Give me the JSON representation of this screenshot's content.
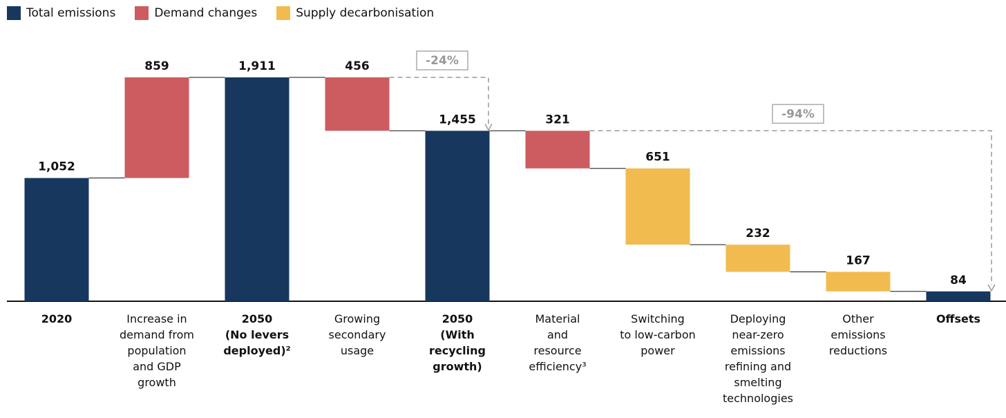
{
  "chart_data": {
    "type": "waterfall",
    "categories": [
      "2020",
      "Increase in\ndemand from\npopulation\nand GDP\ngrowth",
      "2050\n(No levers\ndeployed)²",
      "Growing\nsecondary\nusage",
      "2050\n(With\nrecycling\ngrowth)",
      "Material\nand\nresource\nefficiency³",
      "Switching\nto low-carbon\npower",
      "Deploying\nnear-zero\nemissions\nrefining and\nsmelting\ntechnologies",
      "Other\nemissions\nreductions",
      "Offsets"
    ],
    "series": [
      {
        "name": "Total emissions",
        "color": "#17375e",
        "values": [
          1052,
          null,
          1911,
          null,
          1455,
          null,
          null,
          null,
          null,
          84
        ],
        "value_labels": [
          "1,052",
          null,
          "1,911",
          null,
          "1,455",
          null,
          null,
          null,
          null,
          "84"
        ]
      },
      {
        "name": "Demand changes",
        "color": "#cd5c60",
        "values": [
          null,
          859,
          null,
          456,
          null,
          321,
          null,
          null,
          null,
          null
        ],
        "value_labels": [
          null,
          "859",
          null,
          "456",
          null,
          "321",
          null,
          null,
          null,
          null
        ]
      },
      {
        "name": "Supply decarbonisation",
        "color": "#f2bb50",
        "values": [
          null,
          null,
          null,
          null,
          null,
          null,
          651,
          232,
          167,
          null
        ],
        "value_labels": [
          null,
          null,
          null,
          null,
          null,
          null,
          "651",
          "232",
          "167",
          null
        ]
      }
    ],
    "ylim": [
      0,
      1911
    ],
    "annotations": [
      "-24%",
      "-94%"
    ]
  }
}
